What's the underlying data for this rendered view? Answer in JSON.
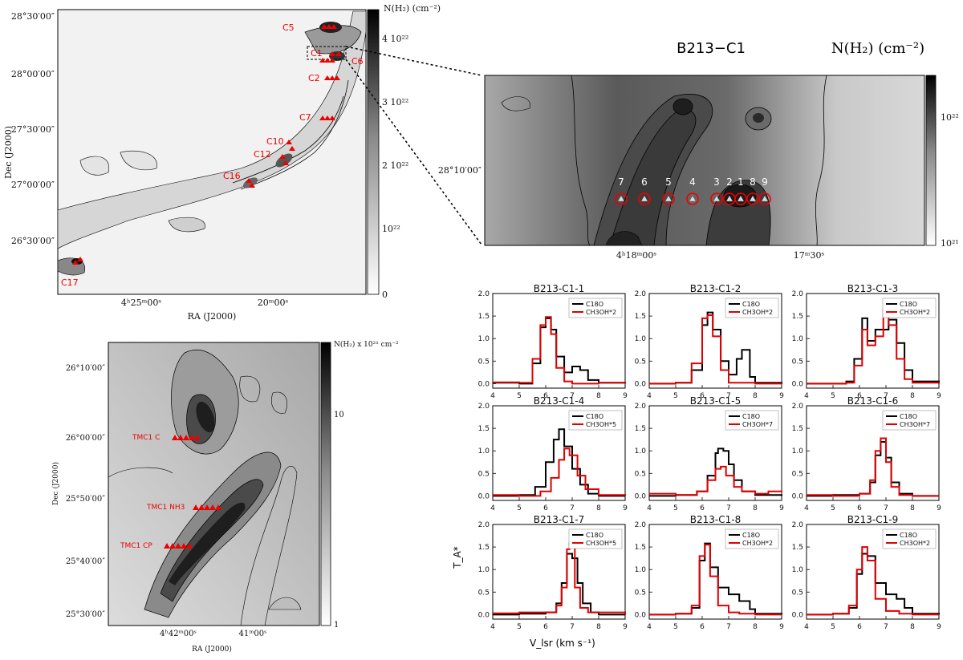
{
  "panel_a": {
    "dec_ticks": [
      "28°30′00″",
      "28°00′00″",
      "27°30′00″",
      "27°00′00″",
      "26°30′00″"
    ],
    "ra_ticks": [
      "4ʰ25ᵐ00ˢ",
      "20ᵐ00ˢ"
    ],
    "xlabel": "RA (J2000)",
    "ylabel": "Dec (J2000)",
    "cbar_title": "N(H₂) (cm⁻²)",
    "cbar_ticks": [
      "4 10²²",
      "3 10²²",
      "2 10²²",
      "10²²",
      "0"
    ],
    "cores": [
      "C5",
      "C1",
      "C6",
      "C2",
      "C7",
      "C10",
      "C12",
      "C16",
      "C17"
    ]
  },
  "panel_b": {
    "title": "B213−C1",
    "cbar_title": "N(H₂) (cm⁻²)",
    "dec_tick": "28°10′00″",
    "ra_ticks": [
      "4ʰ18ᵐ00ˢ",
      "17ᵐ30ˢ"
    ],
    "cbar_ticks": [
      "10²²",
      "10²¹"
    ],
    "positions": [
      "7",
      "6",
      "5",
      "4",
      "3",
      "2",
      "1",
      "8",
      "9"
    ]
  },
  "panel_c": {
    "dec_ticks": [
      "26°10′00″",
      "26°00′00″",
      "25°50′00″",
      "25°40′00″",
      "25°30′00″"
    ],
    "ra_ticks": [
      "4ʰ42ᵐ00ˢ",
      "41ᵐ00ˢ"
    ],
    "xlabel": "RA (J2000)",
    "ylabel": "Dec (J2000)",
    "cbar_title": "N(H₂) x 10²¹ cm⁻²",
    "cbar_ticks": [
      "10",
      "1"
    ],
    "labels": [
      "TMC1 C",
      "TMC1 NH3",
      "TMC1 CP"
    ]
  },
  "spectra_axes": {
    "xlabel": "V_lsr (km s⁻¹)",
    "ylabel": "T_A*",
    "x_ticks": [
      "4",
      "5",
      "6",
      "7",
      "8",
      "9"
    ],
    "y_ticks": [
      "0.0",
      "0.5",
      "1.0",
      "1.5",
      "2.0"
    ]
  },
  "chart_data": {
    "type": "line",
    "xlim": [
      4,
      9
    ],
    "ylim": [
      -0.1,
      2.0
    ],
    "panels": [
      {
        "title": "B213-C1-1",
        "series": [
          {
            "name": "C18O",
            "x": [
              4.0,
              5.0,
              5.5,
              5.8,
              6.0,
              6.2,
              6.4,
              6.7,
              7.0,
              7.3,
              7.6,
              8.0,
              9.0
            ],
            "y": [
              0.02,
              0.0,
              0.45,
              1.25,
              1.45,
              1.2,
              0.6,
              0.25,
              0.38,
              0.3,
              0.08,
              0.02,
              0.0
            ]
          },
          {
            "name": "CH3OH*2",
            "x": [
              4.0,
              5.0,
              5.5,
              5.8,
              6.0,
              6.2,
              6.4,
              6.7,
              7.0,
              8.0,
              9.0
            ],
            "y": [
              0.03,
              0.02,
              0.55,
              1.3,
              1.48,
              1.1,
              0.35,
              0.05,
              0.0,
              0.02,
              0.0
            ]
          }
        ]
      },
      {
        "title": "B213-C1-2",
        "series": [
          {
            "name": "C18O",
            "x": [
              4.0,
              5.0,
              5.6,
              6.0,
              6.2,
              6.4,
              6.7,
              7.0,
              7.3,
              7.5,
              7.8,
              8.0,
              9.0
            ],
            "y": [
              0.0,
              0.02,
              0.3,
              1.3,
              1.58,
              1.2,
              0.5,
              0.2,
              0.55,
              0.75,
              0.15,
              0.02,
              0.0
            ]
          },
          {
            "name": "CH3OH*2",
            "x": [
              4.0,
              5.0,
              5.6,
              6.0,
              6.2,
              6.4,
              6.7,
              7.0,
              8.0,
              9.0
            ],
            "y": [
              0.0,
              0.02,
              0.45,
              1.45,
              1.52,
              1.05,
              0.3,
              0.02,
              0.0,
              0.0
            ]
          }
        ]
      },
      {
        "title": "B213-C1-3",
        "series": [
          {
            "name": "C18O",
            "x": [
              4.0,
              5.5,
              5.8,
              6.1,
              6.3,
              6.6,
              6.9,
              7.1,
              7.4,
              7.7,
              8.0,
              9.0
            ],
            "y": [
              0.0,
              0.05,
              0.55,
              1.45,
              0.95,
              1.2,
              1.2,
              1.42,
              0.9,
              0.3,
              0.05,
              0.0
            ]
          },
          {
            "name": "CH3OH*2",
            "x": [
              4.0,
              5.5,
              5.8,
              6.1,
              6.3,
              6.6,
              6.9,
              7.1,
              7.4,
              7.7,
              8.0,
              9.0
            ],
            "y": [
              0.0,
              0.02,
              0.4,
              1.2,
              0.85,
              1.05,
              1.65,
              1.3,
              0.55,
              0.1,
              0.02,
              0.0
            ]
          }
        ]
      },
      {
        "title": "B213-C1-4",
        "series": [
          {
            "name": "C18O",
            "x": [
              4.0,
              5.0,
              5.6,
              6.0,
              6.3,
              6.5,
              6.7,
              7.0,
              7.3,
              7.6,
              8.0,
              9.0
            ],
            "y": [
              0.0,
              0.02,
              0.2,
              0.75,
              1.25,
              1.48,
              1.1,
              0.6,
              0.25,
              0.05,
              0.0,
              0.0
            ]
          },
          {
            "name": "CH3OH*5",
            "x": [
              4.0,
              5.0,
              5.8,
              6.2,
              6.5,
              6.7,
              6.9,
              7.2,
              7.5,
              8.0,
              9.0
            ],
            "y": [
              0.02,
              0.0,
              0.1,
              0.4,
              0.8,
              1.05,
              0.9,
              0.45,
              0.15,
              0.02,
              0.0
            ]
          }
        ]
      },
      {
        "title": "B213-C1-5",
        "series": [
          {
            "name": "C18O",
            "x": [
              4.0,
              5.0,
              5.8,
              6.2,
              6.5,
              6.6,
              6.8,
              7.0,
              7.2,
              7.5,
              8.0,
              9.0
            ],
            "y": [
              0.0,
              0.02,
              0.1,
              0.45,
              0.95,
              1.05,
              1.0,
              0.7,
              0.35,
              0.1,
              0.02,
              0.0
            ]
          },
          {
            "name": "CH3OH*7",
            "x": [
              4.0,
              5.0,
              5.8,
              6.2,
              6.5,
              6.7,
              6.9,
              7.2,
              7.5,
              8.0,
              8.5,
              9.0
            ],
            "y": [
              0.05,
              0.02,
              0.1,
              0.35,
              0.6,
              0.65,
              0.45,
              0.2,
              0.1,
              0.05,
              0.1,
              0.12
            ]
          }
        ]
      },
      {
        "title": "B213-C1-6",
        "series": [
          {
            "name": "C18O",
            "x": [
              4.0,
              5.0,
              6.0,
              6.4,
              6.6,
              6.8,
              7.0,
              7.2,
              7.5,
              8.0,
              9.0
            ],
            "y": [
              0.0,
              0.02,
              0.05,
              0.3,
              0.9,
              1.2,
              0.85,
              0.3,
              0.05,
              0.0,
              0.0
            ]
          },
          {
            "name": "CH3OH*7",
            "x": [
              4.0,
              5.0,
              6.0,
              6.4,
              6.6,
              6.8,
              7.0,
              7.2,
              7.5,
              8.0,
              9.0
            ],
            "y": [
              0.02,
              0.0,
              0.05,
              0.35,
              1.0,
              1.28,
              0.75,
              0.2,
              0.02,
              0.0,
              0.0
            ]
          }
        ]
      },
      {
        "title": "B213-C1-7",
        "series": [
          {
            "name": "C18O",
            "x": [
              4.0,
              5.0,
              6.0,
              6.4,
              6.6,
              6.8,
              7.0,
              7.2,
              7.4,
              7.7,
              8.0,
              9.0
            ],
            "y": [
              0.0,
              0.02,
              0.05,
              0.25,
              0.7,
              1.35,
              1.25,
              0.7,
              0.25,
              0.05,
              0.0,
              0.0
            ]
          },
          {
            "name": "CH3OH*5",
            "x": [
              4.0,
              5.0,
              6.0,
              6.4,
              6.6,
              6.8,
              6.9,
              7.1,
              7.3,
              7.6,
              8.0,
              9.0
            ],
            "y": [
              0.03,
              0.05,
              0.05,
              0.2,
              0.6,
              1.45,
              1.6,
              0.6,
              0.15,
              0.05,
              0.05,
              0.0
            ]
          }
        ]
      },
      {
        "title": "B213-C1-8",
        "series": [
          {
            "name": "C18O",
            "x": [
              4.0,
              5.0,
              5.6,
              5.9,
              6.1,
              6.3,
              6.6,
              7.0,
              7.4,
              7.8,
              8.0,
              9.0
            ],
            "y": [
              0.0,
              0.02,
              0.15,
              1.2,
              1.58,
              1.05,
              0.6,
              0.45,
              0.3,
              0.12,
              0.02,
              0.0
            ]
          },
          {
            "name": "CH3OH*2",
            "x": [
              4.0,
              5.0,
              5.6,
              5.9,
              6.1,
              6.3,
              6.6,
              7.0,
              7.4,
              8.0,
              9.0
            ],
            "y": [
              0.0,
              0.02,
              0.2,
              1.3,
              1.55,
              0.85,
              0.2,
              0.05,
              0.02,
              0.0,
              0.0
            ]
          }
        ]
      },
      {
        "title": "B213-C1-9",
        "series": [
          {
            "name": "C18O",
            "x": [
              4.0,
              5.0,
              5.6,
              5.9,
              6.1,
              6.3,
              6.6,
              7.0,
              7.4,
              7.7,
              8.0,
              9.0
            ],
            "y": [
              0.0,
              0.02,
              0.15,
              0.9,
              1.35,
              1.3,
              0.7,
              0.45,
              0.35,
              0.15,
              0.02,
              0.0
            ]
          },
          {
            "name": "CH3OH*2",
            "x": [
              4.0,
              5.0,
              5.6,
              5.9,
              6.1,
              6.3,
              6.6,
              7.0,
              7.5,
              8.0,
              9.0
            ],
            "y": [
              0.0,
              0.02,
              0.2,
              1.0,
              1.5,
              1.2,
              0.35,
              0.08,
              0.02,
              0.0,
              0.0
            ]
          }
        ]
      }
    ]
  }
}
